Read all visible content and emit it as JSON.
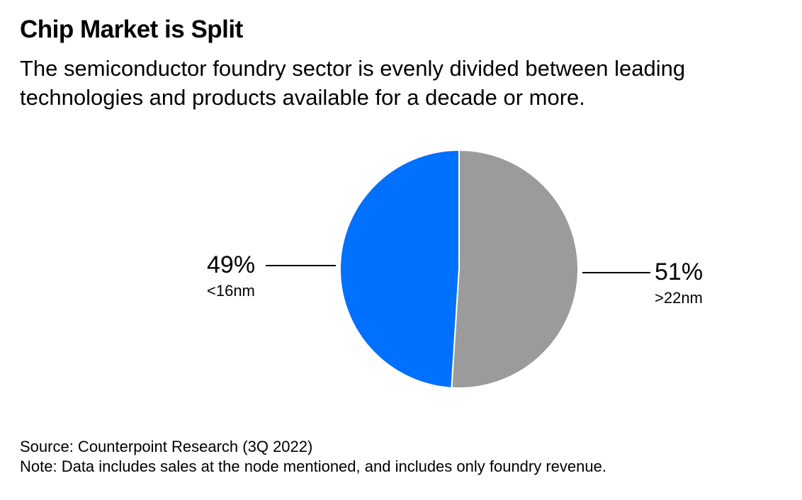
{
  "chart_data": {
    "type": "pie",
    "title": "Chip Market is Split",
    "subtitle": "The semiconductor foundry sector is evenly divided between leading technologies and products available for a decade or more.",
    "slices": [
      {
        "label": "<16nm",
        "value": 49,
        "value_label": "49%",
        "color": "#0070FF"
      },
      {
        "label": ">22nm",
        "value": 51,
        "value_label": "51%",
        "color": "#9B9B9B"
      }
    ],
    "source": "Source: Counterpoint Research (3Q 2022)",
    "note": "Note: Data includes sales at the node mentioned, and includes only foundry revenue."
  }
}
